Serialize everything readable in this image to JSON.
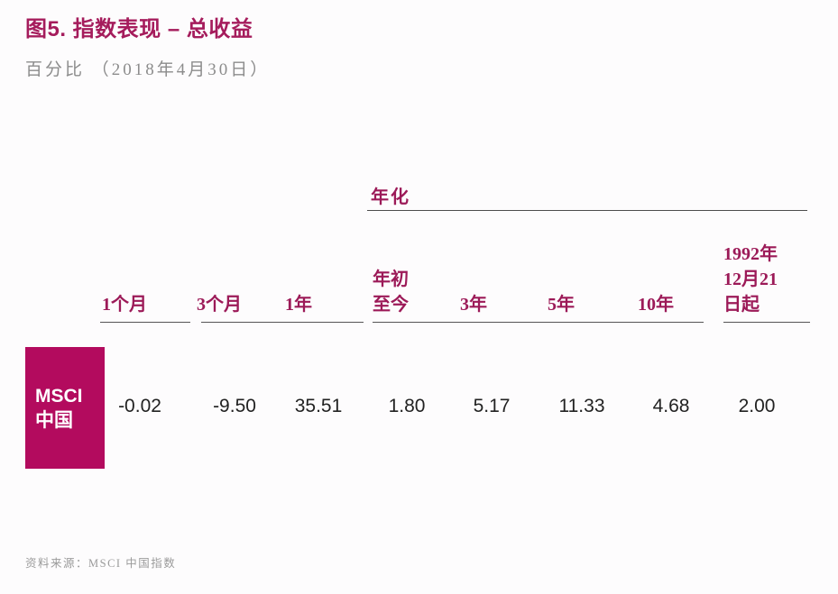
{
  "page": {
    "title": "图5. 指数表现 – 总收益",
    "subtitle": "百分比 （2018年4月30日）",
    "source": "资料来源：MSCI 中国指数"
  },
  "colors": {
    "accent_magenta": "#a51c5c",
    "header_text": "#9c1a58",
    "row_label_bg": "#b30b5e",
    "value_text": "#222222",
    "subtitle_gray": "#8c8c8c",
    "rule_gray": "#555555"
  },
  "table": {
    "group_label": "年化",
    "headers": [
      {
        "label": "1个月"
      },
      {
        "label": "3个月"
      },
      {
        "label": "1年"
      },
      {
        "label": "年初\n至今"
      },
      {
        "label": "3年"
      },
      {
        "label": "5年"
      },
      {
        "label": "10年"
      },
      {
        "label": "1992年\n12月21\n日起"
      }
    ],
    "row": {
      "label": "MSCI\n中国",
      "values": [
        "-0.02",
        "-9.50",
        "35.51",
        "1.80",
        "5.17",
        "11.33",
        "4.68",
        "2.00"
      ]
    }
  },
  "chart_data": {
    "type": "table",
    "title": "图5. 指数表现 – 总收益",
    "unit_note": "百分比 （2018年4月30日）",
    "group_label": "年化",
    "annualized_columns": [
      "年初至今",
      "3年",
      "5年",
      "10年",
      "1992年12月21日起"
    ],
    "categories": [
      "1个月",
      "3个月",
      "1年",
      "年初至今",
      "3年",
      "5年",
      "10年",
      "1992年12月21日起"
    ],
    "series": [
      {
        "name": "MSCI 中国",
        "values": [
          -0.02,
          -9.5,
          35.51,
          1.8,
          5.17,
          11.33,
          4.68,
          2.0
        ]
      }
    ],
    "source": "资料来源：MSCI 中国指数"
  }
}
